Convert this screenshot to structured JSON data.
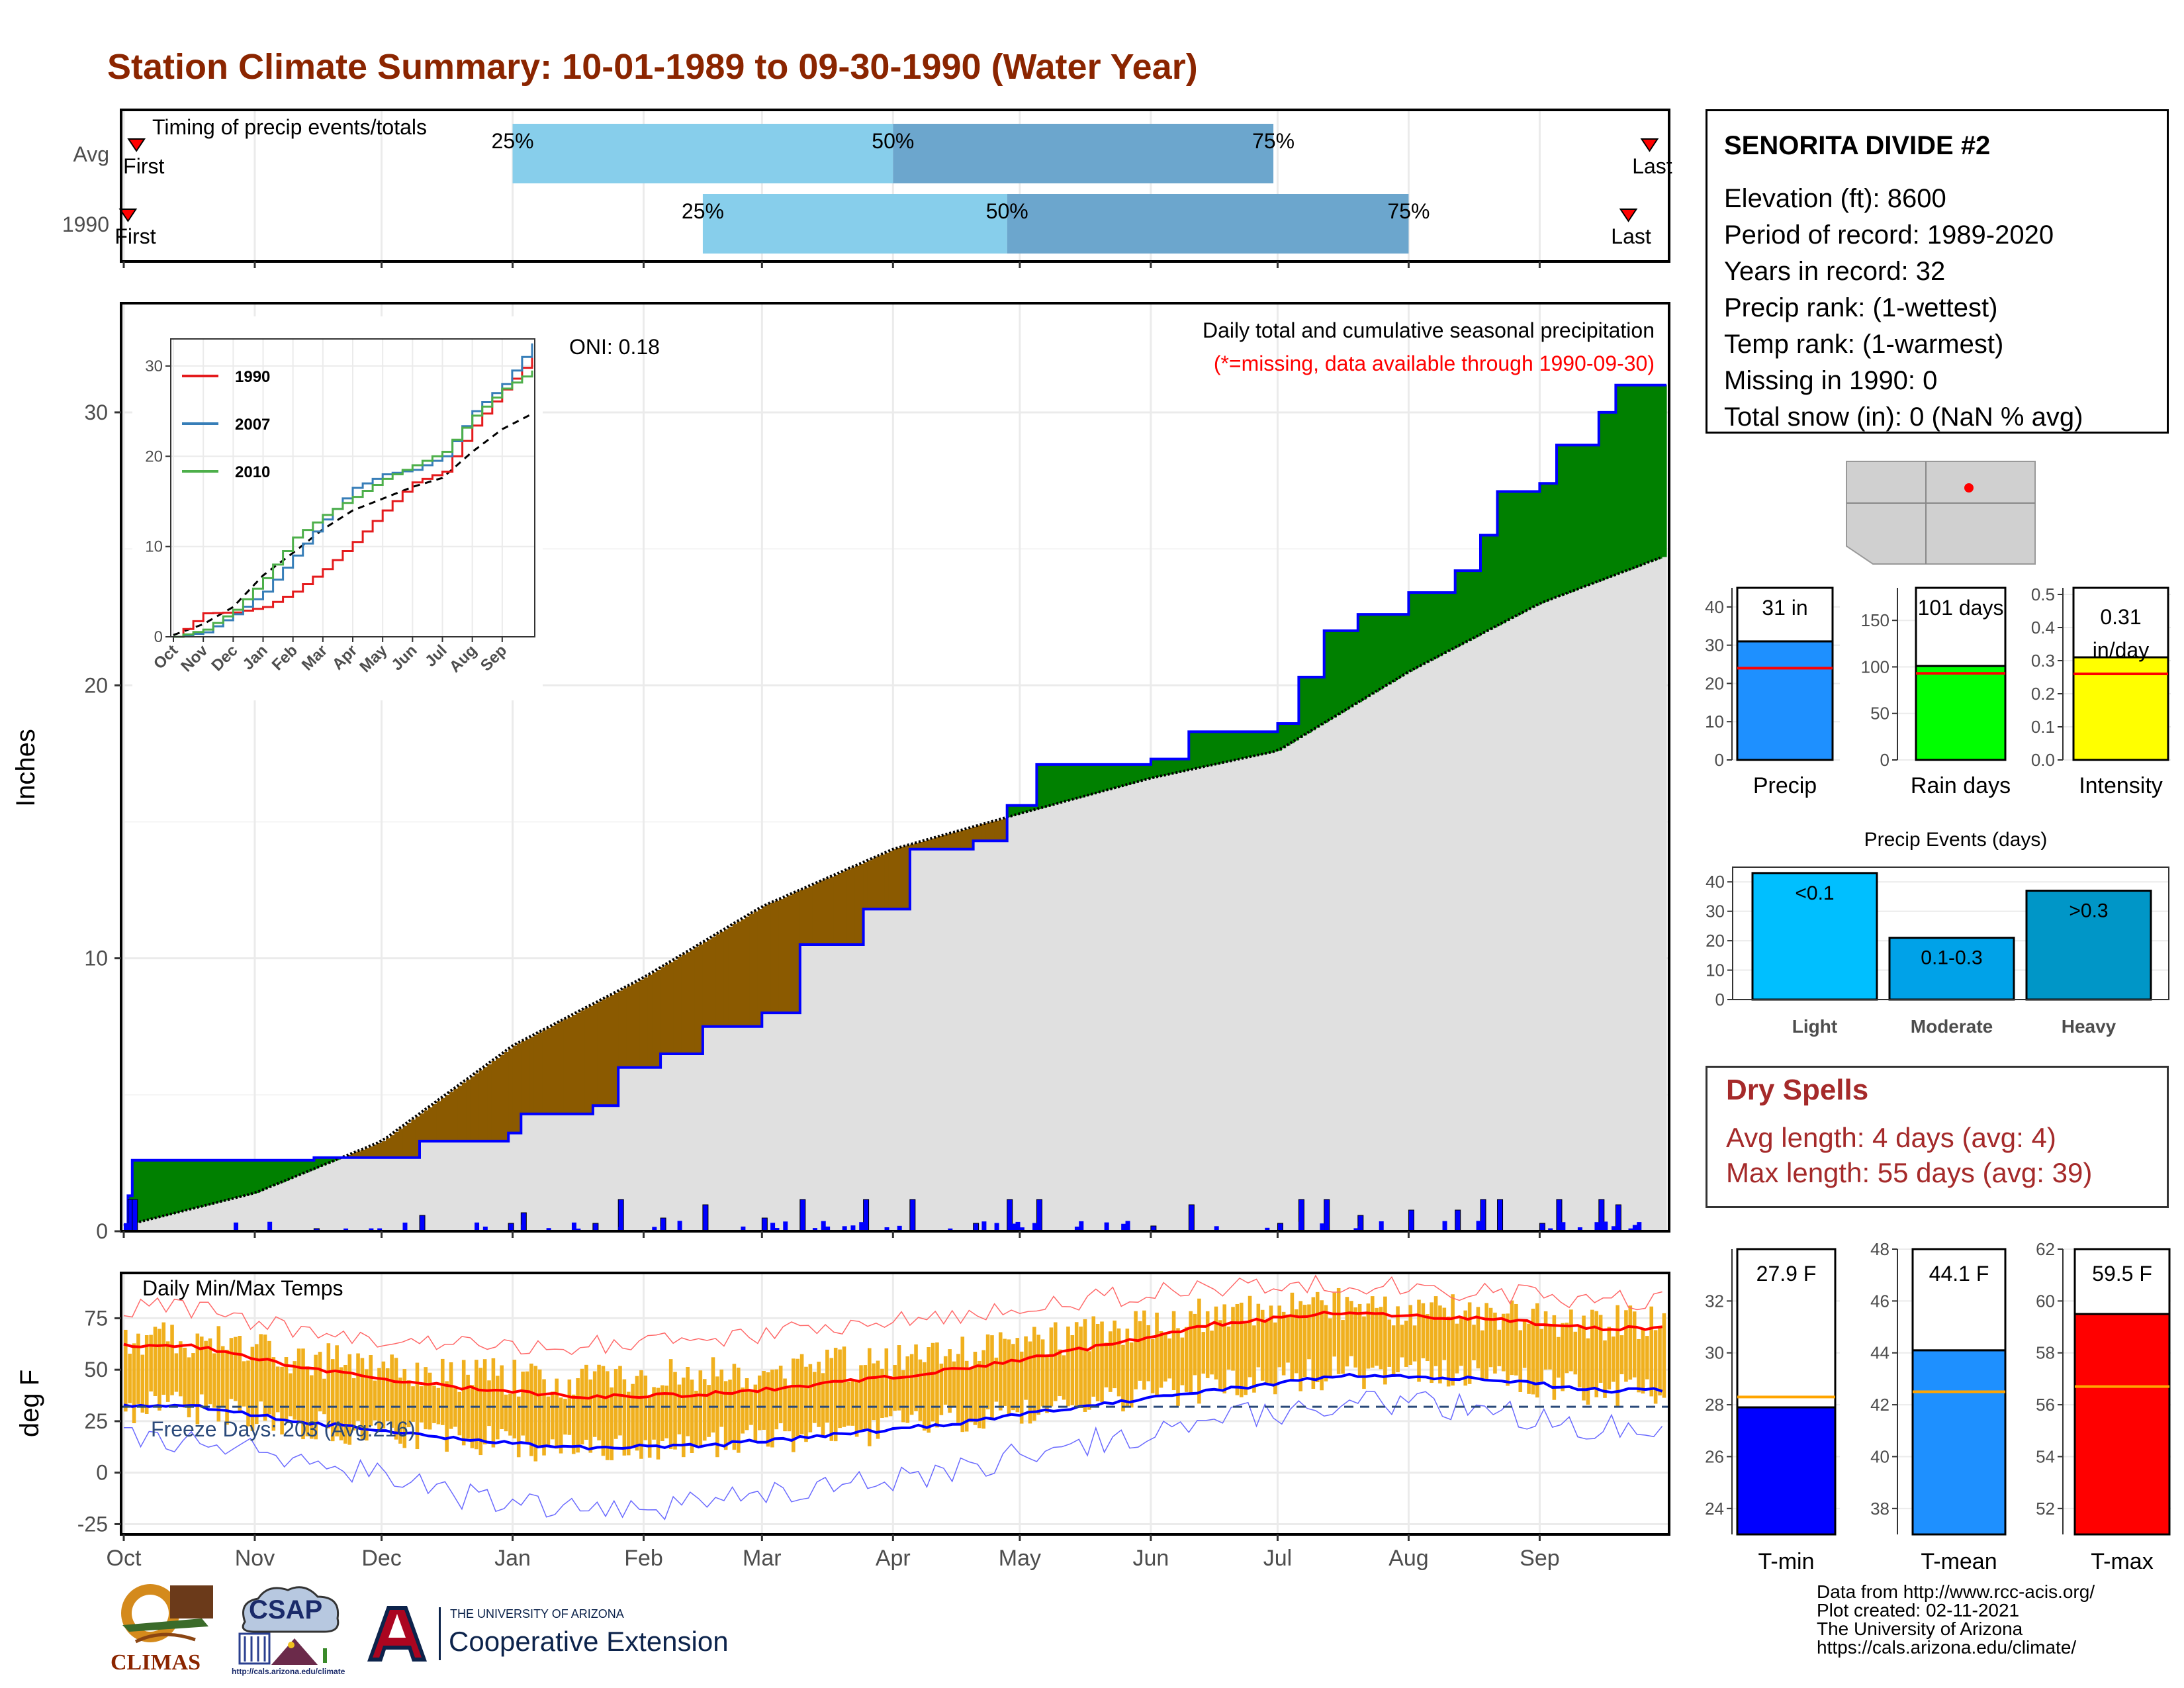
{
  "page": {
    "title": "Station Climate Summary: 10-01-1989 to 09-30-1990 (Water Year)"
  },
  "station": {
    "name": "SENORITA DIVIDE #2",
    "lines": [
      "Elevation (ft): 8600",
      "Period of record: 1989-2020",
      "Years in record: 32",
      "Precip rank:  (1-wettest)",
      "Temp rank:  (1-warmest)",
      "Missing in 1990: 0",
      "Total snow (in): 0 (NaN % avg)"
    ]
  },
  "dry_spells": {
    "title": "Dry Spells",
    "avg_line": "Avg length: 4 days (avg: 4)",
    "max_line": "Max length: 55 days (avg: 39)"
  },
  "credits": {
    "lines": [
      "Data from http://www.rcc-acis.org/",
      "Plot created: 02-11-2021",
      "The University of Arizona",
      "https://cals.arizona.edu/climate/"
    ]
  },
  "logos": {
    "climas": "CLIMAS",
    "csap": "CSAP",
    "csap_url": "http://cals.arizona.edu/climate",
    "ua_small": "THE UNIVERSITY OF ARIZONA",
    "ua_big": "Cooperative Extension"
  },
  "colors": {
    "wet": "#008000",
    "dry": "#8b5a00",
    "avg_fill": "#e0e0e0",
    "obs_line": "#0000ff",
    "tmax": "#ff0000",
    "tmin": "#0000ff",
    "temp_bar": "#f0b01e",
    "light_blue": "#87ceeb",
    "mid_blue": "#6ca6cd",
    "title": "#8b2500"
  },
  "chart_data": [
    {
      "type": "bar",
      "title": "Timing of precip events/totals",
      "categories": [
        "Avg",
        "1990"
      ],
      "series": [
        {
          "name": "Avg",
          "q25": "Jan 1",
          "q50": "Apr 1",
          "q75": "Jun 30",
          "first": "Oct 1",
          "last": "Sep 30"
        },
        {
          "name": "1990",
          "q25": "Feb 15",
          "q50": "Apr 28",
          "q75": "Aug 1",
          "first": "Oct 1",
          "last": "Sep 27"
        }
      ],
      "labels": [
        "25%",
        "50%",
        "75%",
        "First",
        "Last"
      ]
    },
    {
      "type": "area",
      "title": "Daily total and cumulative seasonal precipitation",
      "subtitle": "(*=missing, data available through 1990-09-30)",
      "annotation": "ONI: 0.18",
      "ylabel": "Inches",
      "ylim": [
        0,
        34
      ],
      "yticks": [
        0,
        10,
        20,
        30
      ],
      "months": [
        "Oct",
        "Nov",
        "Dec",
        "Jan",
        "Feb",
        "Mar",
        "Apr",
        "May",
        "Jun",
        "Jul",
        "Aug",
        "Sep"
      ],
      "observed_cumulative": [
        {
          "date": "1989-10-01",
          "in": 0.0
        },
        {
          "date": "1989-10-02",
          "in": 1.3
        },
        {
          "date": "1989-10-03",
          "in": 2.6
        },
        {
          "date": "1989-11-15",
          "in": 2.7
        },
        {
          "date": "1989-12-10",
          "in": 3.3
        },
        {
          "date": "1989-12-31",
          "in": 3.6
        },
        {
          "date": "1990-01-03",
          "in": 4.3
        },
        {
          "date": "1990-01-20",
          "in": 4.6
        },
        {
          "date": "1990-01-26",
          "in": 6.0
        },
        {
          "date": "1990-02-05",
          "in": 6.5
        },
        {
          "date": "1990-02-15",
          "in": 7.5
        },
        {
          "date": "1990-03-01",
          "in": 8.0
        },
        {
          "date": "1990-03-10",
          "in": 10.5
        },
        {
          "date": "1990-03-25",
          "in": 11.8
        },
        {
          "date": "1990-04-05",
          "in": 14.0
        },
        {
          "date": "1990-04-20",
          "in": 14.3
        },
        {
          "date": "1990-04-28",
          "in": 15.6
        },
        {
          "date": "1990-05-05",
          "in": 17.1
        },
        {
          "date": "1990-06-01",
          "in": 17.3
        },
        {
          "date": "1990-06-10",
          "in": 18.3
        },
        {
          "date": "1990-07-01",
          "in": 18.6
        },
        {
          "date": "1990-07-06",
          "in": 20.3
        },
        {
          "date": "1990-07-12",
          "in": 22.0
        },
        {
          "date": "1990-07-20",
          "in": 22.6
        },
        {
          "date": "1990-08-01",
          "in": 23.4
        },
        {
          "date": "1990-08-12",
          "in": 24.2
        },
        {
          "date": "1990-08-18",
          "in": 25.5
        },
        {
          "date": "1990-08-22",
          "in": 27.1
        },
        {
          "date": "1990-09-01",
          "in": 27.4
        },
        {
          "date": "1990-09-05",
          "in": 28.8
        },
        {
          "date": "1990-09-15",
          "in": 30.0
        },
        {
          "date": "1990-09-19",
          "in": 31.0
        },
        {
          "date": "1990-09-30",
          "in": 31.0
        }
      ],
      "average_cumulative": [
        {
          "date": "1989-10-01",
          "in": 0.2
        },
        {
          "date": "1989-11-01",
          "in": 1.4
        },
        {
          "date": "1989-12-01",
          "in": 3.3
        },
        {
          "date": "1990-01-01",
          "in": 6.8
        },
        {
          "date": "1990-02-01",
          "in": 9.3
        },
        {
          "date": "1990-03-01",
          "in": 11.9
        },
        {
          "date": "1990-04-01",
          "in": 14.0
        },
        {
          "date": "1990-05-01",
          "in": 15.3
        },
        {
          "date": "1990-06-01",
          "in": 16.6
        },
        {
          "date": "1990-07-01",
          "in": 17.6
        },
        {
          "date": "1990-08-01",
          "in": 20.5
        },
        {
          "date": "1990-09-01",
          "in": 23.0
        },
        {
          "date": "1990-09-30",
          "in": 24.7
        }
      ],
      "daily_precip_note": "daily totals shown as small blue bars along the bottom"
    },
    {
      "type": "line",
      "title": "",
      "ylim": [
        0,
        33
      ],
      "yticks": [
        0,
        10,
        20,
        30
      ],
      "categories": [
        "Oct",
        "Nov",
        "Dec",
        "Jan",
        "Feb",
        "Mar",
        "Apr",
        "May",
        "Jun",
        "Jul",
        "Aug",
        "Sep"
      ],
      "series": [
        {
          "name": "1990",
          "color": "#e41a1c",
          "values": [
            2.6,
            2.7,
            3.3,
            5.0,
            7.5,
            10.5,
            14.0,
            17.1,
            18.3,
            23.4,
            27.4,
            31.0
          ]
        },
        {
          "name": "2007",
          "color": "#377eb8",
          "values": [
            0.5,
            2.5,
            5.0,
            9.0,
            13.0,
            16.5,
            18.0,
            18.5,
            20.0,
            25.0,
            28.0,
            32.5
          ]
        },
        {
          "name": "2010",
          "color": "#4daf4a",
          "values": [
            0.8,
            3.0,
            6.5,
            11.0,
            13.5,
            15.5,
            17.5,
            19.0,
            20.5,
            24.5,
            27.5,
            29.5
          ]
        }
      ],
      "average_values": [
        0.2,
        1.4,
        3.3,
        6.8,
        9.3,
        11.9,
        14.0,
        15.3,
        16.6,
        17.6,
        20.5,
        23.0,
        24.7
      ]
    },
    {
      "type": "bar",
      "title": "",
      "categories": [
        "Precip",
        "Rain days",
        "Intensity"
      ],
      "series": [
        {
          "name": "Precip",
          "value": 31,
          "avg": 24,
          "label": "31 in",
          "ylim": [
            0,
            45
          ],
          "yticks": [
            0,
            10,
            20,
            30,
            40
          ]
        },
        {
          "name": "Rain days",
          "value": 101,
          "avg": 93,
          "label": "101 days",
          "ylim": [
            0,
            185
          ],
          "yticks": [
            0,
            50,
            100,
            150
          ]
        },
        {
          "name": "Intensity",
          "value": 0.31,
          "avg": 0.26,
          "label": "0.31 in/day",
          "ylim": [
            0,
            0.52
          ],
          "yticks": [
            0.0,
            0.1,
            0.2,
            0.3,
            0.4,
            0.5
          ]
        }
      ]
    },
    {
      "type": "bar",
      "title": "Precip Events (days)",
      "categories": [
        "Light",
        "Moderate",
        "Heavy"
      ],
      "values": [
        43,
        21,
        37
      ],
      "bar_labels": [
        "<0.1",
        "0.1-0.3",
        ">0.3"
      ],
      "ylim": [
        0,
        45
      ],
      "yticks": [
        0,
        10,
        20,
        30,
        40
      ]
    },
    {
      "type": "line",
      "title": "Daily Min/Max Temps",
      "annotation": "Freeze Days: 203 (Avg:216)",
      "ylabel": "deg F",
      "ylim": [
        -30,
        97
      ],
      "yticks": [
        -25,
        0,
        25,
        50,
        75
      ],
      "months": [
        "Oct",
        "Nov",
        "Dec",
        "Jan",
        "Feb",
        "Mar",
        "Apr",
        "May",
        "Jun",
        "Jul",
        "Aug",
        "Sep"
      ],
      "freeze_line": 32,
      "avg_tmax_monthly": [
        62,
        50,
        42,
        37,
        38,
        43,
        50,
        60,
        72,
        78,
        75,
        70
      ],
      "avg_tmin_monthly": [
        33,
        24,
        17,
        12,
        13,
        18,
        24,
        32,
        40,
        47,
        46,
        40
      ],
      "record_high_monthly": [
        80,
        68,
        62,
        62,
        64,
        70,
        76,
        84,
        90,
        92,
        88,
        84
      ],
      "record_low_monthly": [
        15,
        5,
        -10,
        -18,
        -15,
        -8,
        2,
        15,
        25,
        34,
        32,
        22
      ],
      "obs_tmax_monthly": [
        65,
        55,
        48,
        44,
        47,
        52,
        58,
        67,
        77,
        82,
        78,
        73
      ],
      "obs_tmin_monthly": [
        32,
        23,
        16,
        12,
        14,
        18,
        26,
        34,
        42,
        49,
        47,
        40
      ]
    },
    {
      "type": "bar",
      "title": "",
      "categories": [
        "T-min",
        "T-mean",
        "T-max"
      ],
      "series": [
        {
          "name": "T-min",
          "value": 27.9,
          "avg": 28.3,
          "label": "27.9 F",
          "ylim": [
            23,
            34
          ],
          "yticks": [
            24,
            26,
            28,
            30,
            32
          ]
        },
        {
          "name": "T-mean",
          "value": 44.1,
          "avg": 42.5,
          "label": "44.1 F",
          "ylim": [
            37,
            48
          ],
          "yticks": [
            38,
            40,
            42,
            44,
            46,
            48
          ]
        },
        {
          "name": "T-max",
          "value": 59.5,
          "avg": 56.7,
          "label": "59.5 F",
          "ylim": [
            51,
            62
          ],
          "yticks": [
            52,
            54,
            56,
            58,
            60,
            62
          ]
        }
      ]
    }
  ]
}
